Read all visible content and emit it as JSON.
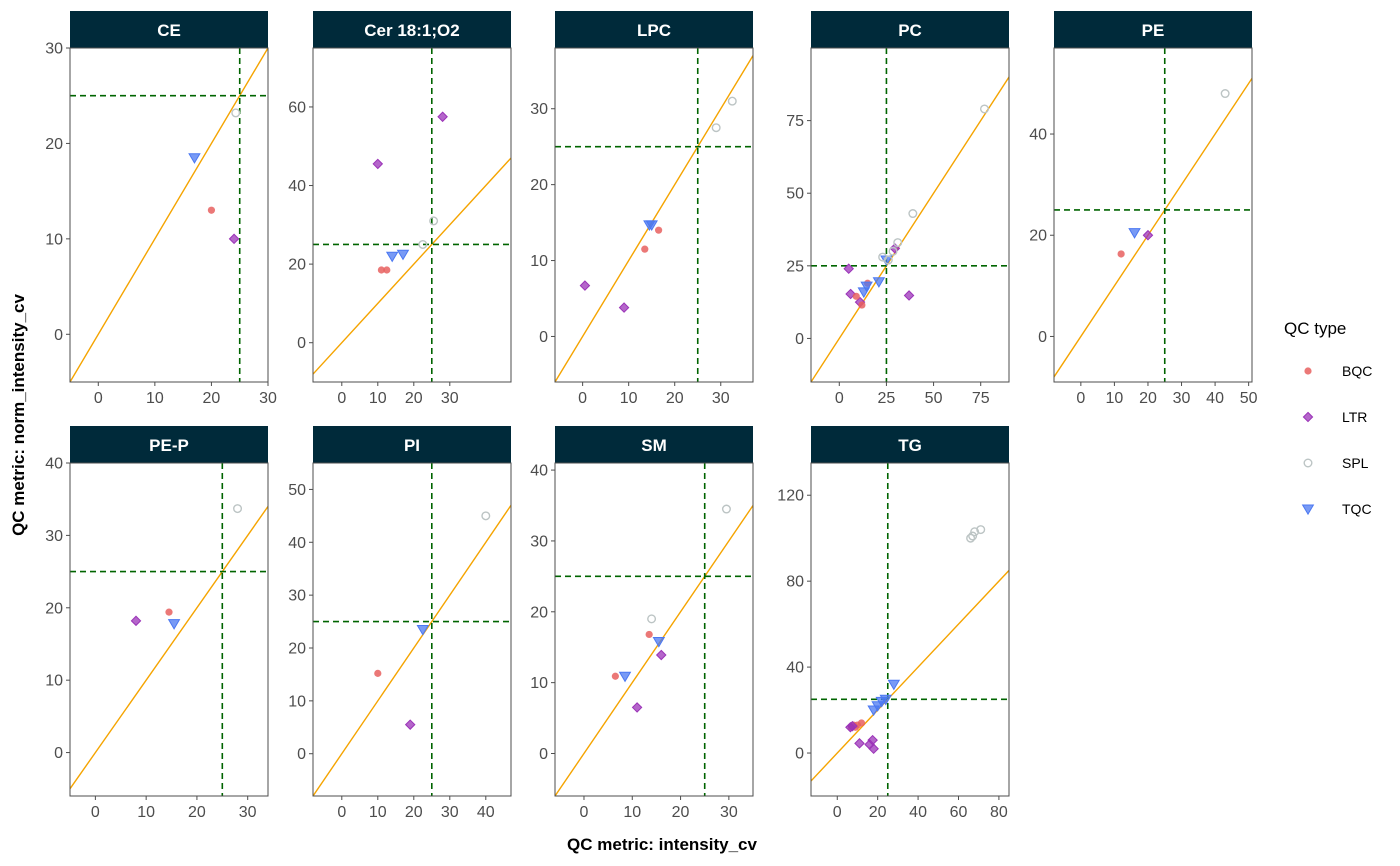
{
  "chart_data": {
    "type": "scatter",
    "xlabel": "QC metric: intensity_cv",
    "ylabel": "QC metric: norm_intensity_cv",
    "legend": {
      "title": "QC type",
      "position": "right",
      "entries": [
        {
          "key": "BQC",
          "label": "BQC",
          "color": "#e8605f",
          "shape": "circle"
        },
        {
          "key": "LTR",
          "label": "LTR",
          "color": "#9b33b8",
          "shape": "diamond"
        },
        {
          "key": "SPL",
          "label": "SPL",
          "color": "#bcc4c4",
          "shape": "open-circle"
        },
        {
          "key": "TQC",
          "label": "TQC",
          "color": "#4b78f2",
          "shape": "triangle-down"
        }
      ]
    },
    "reference_lines": {
      "threshold_x": 25,
      "threshold_y": 25,
      "threshold_color": "#006400",
      "diagonal": "y = x",
      "diagonal_color": "#f5a400"
    },
    "panels": [
      {
        "title": "CE",
        "xlim": [
          -5,
          30
        ],
        "ylim": [
          -5,
          30
        ],
        "xticks": [
          0,
          10,
          20,
          30
        ],
        "yticks": [
          0,
          10,
          20,
          30
        ],
        "points": [
          {
            "type": "TQC",
            "x": 17,
            "y": 18.5
          },
          {
            "type": "BQC",
            "x": 20,
            "y": 13
          },
          {
            "type": "LTR",
            "x": 24,
            "y": 10
          },
          {
            "type": "SPL",
            "x": 24.3,
            "y": 23.2
          }
        ]
      },
      {
        "title": "Cer 18:1;O2",
        "xlim": [
          -8,
          47
        ],
        "ylim": [
          -10,
          75
        ],
        "xticks": [
          0,
          10,
          20,
          30
        ],
        "yticks": [
          0,
          20,
          40,
          60
        ],
        "points": [
          {
            "type": "LTR",
            "x": 10,
            "y": 45.5
          },
          {
            "type": "LTR",
            "x": 28,
            "y": 57.5
          },
          {
            "type": "BQC",
            "x": 11,
            "y": 18.5
          },
          {
            "type": "BQC",
            "x": 12.5,
            "y": 18.5
          },
          {
            "type": "TQC",
            "x": 14,
            "y": 22
          },
          {
            "type": "TQC",
            "x": 17,
            "y": 22.5
          },
          {
            "type": "SPL",
            "x": 22.5,
            "y": 25
          },
          {
            "type": "SPL",
            "x": 25.5,
            "y": 31
          }
        ]
      },
      {
        "title": "LPC",
        "xlim": [
          -6,
          37
        ],
        "ylim": [
          -6,
          38
        ],
        "xticks": [
          0,
          10,
          20,
          30
        ],
        "yticks": [
          0,
          10,
          20,
          30
        ],
        "points": [
          {
            "type": "LTR",
            "x": 0.5,
            "y": 6.7
          },
          {
            "type": "LTR",
            "x": 9,
            "y": 3.8
          },
          {
            "type": "BQC",
            "x": 13.5,
            "y": 11.5
          },
          {
            "type": "BQC",
            "x": 16.5,
            "y": 14
          },
          {
            "type": "TQC",
            "x": 14.5,
            "y": 14.7
          },
          {
            "type": "TQC",
            "x": 15,
            "y": 14.7
          },
          {
            "type": "SPL",
            "x": 29,
            "y": 27.5
          },
          {
            "type": "SPL",
            "x": 32.5,
            "y": 31
          }
        ]
      },
      {
        "title": "PC",
        "xlim": [
          -15,
          90
        ],
        "ylim": [
          -15,
          100
        ],
        "xticks": [
          0,
          25,
          50,
          75
        ],
        "yticks": [
          0,
          25,
          50,
          75
        ],
        "points": [
          {
            "type": "LTR",
            "x": 5,
            "y": 24
          },
          {
            "type": "LTR",
            "x": 6,
            "y": 15.3
          },
          {
            "type": "LTR",
            "x": 11,
            "y": 12.5
          },
          {
            "type": "LTR",
            "x": 37,
            "y": 14.8
          },
          {
            "type": "LTR",
            "x": 29.5,
            "y": 31
          },
          {
            "type": "BQC",
            "x": 9,
            "y": 14.5
          },
          {
            "type": "BQC",
            "x": 12,
            "y": 11.5
          },
          {
            "type": "BQC",
            "x": 15,
            "y": 19
          },
          {
            "type": "TQC",
            "x": 13,
            "y": 16
          },
          {
            "type": "TQC",
            "x": 14.5,
            "y": 18
          },
          {
            "type": "TQC",
            "x": 21,
            "y": 19.5
          },
          {
            "type": "TQC",
            "x": 25,
            "y": 27
          },
          {
            "type": "SPL",
            "x": 23,
            "y": 28
          },
          {
            "type": "SPL",
            "x": 26,
            "y": 27
          },
          {
            "type": "SPL",
            "x": 28.5,
            "y": 30
          },
          {
            "type": "SPL",
            "x": 31,
            "y": 33
          },
          {
            "type": "SPL",
            "x": 39,
            "y": 43
          },
          {
            "type": "SPL",
            "x": 77,
            "y": 79
          }
        ]
      },
      {
        "title": "PE",
        "xlim": [
          -8,
          51
        ],
        "ylim": [
          -9,
          57
        ],
        "xticks": [
          0,
          10,
          20,
          30,
          40,
          50
        ],
        "yticks": [
          0,
          20,
          40
        ],
        "points": [
          {
            "type": "BQC",
            "x": 12,
            "y": 16.3
          },
          {
            "type": "TQC",
            "x": 16,
            "y": 20.5
          },
          {
            "type": "LTR",
            "x": 20,
            "y": 20
          },
          {
            "type": "SPL",
            "x": 43,
            "y": 48
          }
        ]
      },
      {
        "title": "PE-P",
        "xlim": [
          -5,
          34
        ],
        "ylim": [
          -6,
          40
        ],
        "xticks": [
          0,
          10,
          20,
          30
        ],
        "yticks": [
          0,
          10,
          20,
          30,
          40
        ],
        "points": [
          {
            "type": "LTR",
            "x": 8,
            "y": 18.2
          },
          {
            "type": "BQC",
            "x": 14.5,
            "y": 19.4
          },
          {
            "type": "TQC",
            "x": 15.5,
            "y": 17.8
          },
          {
            "type": "SPL",
            "x": 28,
            "y": 33.7
          }
        ]
      },
      {
        "title": "PI",
        "xlim": [
          -8,
          47
        ],
        "ylim": [
          -8,
          55
        ],
        "xticks": [
          0,
          10,
          20,
          30,
          40
        ],
        "yticks": [
          0,
          10,
          20,
          30,
          40,
          50
        ],
        "points": [
          {
            "type": "BQC",
            "x": 10,
            "y": 15.2
          },
          {
            "type": "LTR",
            "x": 19,
            "y": 5.5
          },
          {
            "type": "TQC",
            "x": 22.5,
            "y": 23.5
          },
          {
            "type": "SPL",
            "x": 40,
            "y": 45
          }
        ]
      },
      {
        "title": "SM",
        "xlim": [
          -6,
          35
        ],
        "ylim": [
          -6,
          41
        ],
        "xticks": [
          0,
          10,
          20,
          30
        ],
        "yticks": [
          0,
          10,
          20,
          30,
          40
        ],
        "points": [
          {
            "type": "BQC",
            "x": 6.5,
            "y": 10.9
          },
          {
            "type": "TQC",
            "x": 8.5,
            "y": 10.9
          },
          {
            "type": "LTR",
            "x": 11,
            "y": 6.5
          },
          {
            "type": "BQC",
            "x": 13.5,
            "y": 16.8
          },
          {
            "type": "SPL",
            "x": 14,
            "y": 19
          },
          {
            "type": "TQC",
            "x": 15.5,
            "y": 15.8
          },
          {
            "type": "LTR",
            "x": 16,
            "y": 13.9
          },
          {
            "type": "SPL",
            "x": 29.5,
            "y": 34.5
          }
        ]
      },
      {
        "title": "TG",
        "xlim": [
          -13,
          85
        ],
        "ylim": [
          -20,
          135
        ],
        "xticks": [
          0,
          20,
          40,
          60,
          80
        ],
        "yticks": [
          0,
          40,
          80,
          120
        ],
        "points": [
          {
            "type": "BQC",
            "x": 7,
            "y": 12
          },
          {
            "type": "BQC",
            "x": 8,
            "y": 13
          },
          {
            "type": "BQC",
            "x": 9,
            "y": 12
          },
          {
            "type": "BQC",
            "x": 10,
            "y": 13
          },
          {
            "type": "BQC",
            "x": 12,
            "y": 14
          },
          {
            "type": "LTR",
            "x": 6.5,
            "y": 12
          },
          {
            "type": "LTR",
            "x": 7.5,
            "y": 12.5
          },
          {
            "type": "LTR",
            "x": 11,
            "y": 4.5
          },
          {
            "type": "LTR",
            "x": 16,
            "y": 4
          },
          {
            "type": "LTR",
            "x": 17.5,
            "y": 6
          },
          {
            "type": "LTR",
            "x": 18,
            "y": 2
          },
          {
            "type": "TQC",
            "x": 18,
            "y": 20
          },
          {
            "type": "TQC",
            "x": 20,
            "y": 22
          },
          {
            "type": "TQC",
            "x": 22,
            "y": 24
          },
          {
            "type": "TQC",
            "x": 24,
            "y": 25
          },
          {
            "type": "TQC",
            "x": 28,
            "y": 32
          },
          {
            "type": "SPL",
            "x": 66,
            "y": 100
          },
          {
            "type": "SPL",
            "x": 67,
            "y": 101
          },
          {
            "type": "SPL",
            "x": 68,
            "y": 103
          },
          {
            "type": "SPL",
            "x": 71,
            "y": 104
          }
        ]
      }
    ]
  }
}
